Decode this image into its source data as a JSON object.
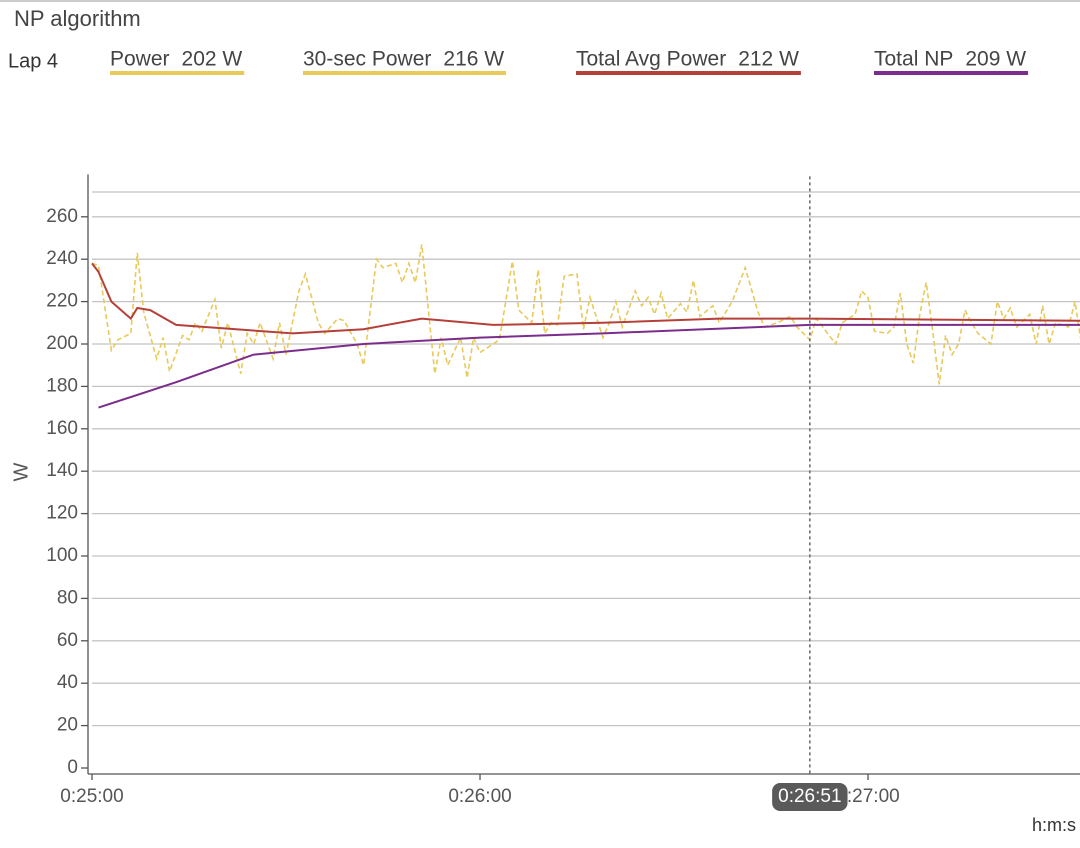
{
  "chart_data": {
    "type": "line",
    "title": "NP algorithm",
    "lap": "Lap 4",
    "ylabel": "W",
    "xlabel": "h:m:s",
    "xlim": [
      1500,
      1653
    ],
    "ylim": [
      0,
      280
    ],
    "xticks": [
      {
        "value": 1500,
        "label": "0:25:00"
      },
      {
        "value": 1560,
        "label": "0:26:00"
      },
      {
        "value": 1620,
        "label": "0:27:00"
      }
    ],
    "yticks": [
      0,
      20,
      40,
      60,
      80,
      100,
      120,
      140,
      160,
      180,
      200,
      220,
      240,
      260
    ],
    "grid": true,
    "cursor": {
      "value": 1611,
      "label": "0:26:51"
    },
    "series": [
      {
        "name": "Power",
        "legend_label": "202 W",
        "color": "#e8c95a",
        "dashed": true,
        "x": [
          1500,
          1501,
          1503,
          1504,
          1506,
          1507,
          1508,
          1510,
          1511,
          1512,
          1514,
          1515,
          1516,
          1517,
          1519,
          1520,
          1521,
          1523,
          1524,
          1525,
          1526,
          1528,
          1529,
          1530,
          1532,
          1533,
          1535,
          1536,
          1538,
          1539,
          1541,
          1542,
          1544,
          1545,
          1547,
          1548,
          1549,
          1550,
          1551,
          1553,
          1554,
          1555,
          1557,
          1558,
          1559,
          1560,
          1562,
          1563,
          1565,
          1566,
          1568,
          1569,
          1570,
          1571,
          1572,
          1573,
          1575,
          1576,
          1577,
          1579,
          1580,
          1581,
          1582,
          1584,
          1585,
          1586,
          1587,
          1588,
          1589,
          1591,
          1592,
          1593,
          1594,
          1596,
          1597,
          1599,
          1601,
          1603,
          1604,
          1606,
          1608,
          1609,
          1611,
          1612,
          1613,
          1615,
          1616,
          1618,
          1619,
          1620,
          1621,
          1623,
          1624,
          1625,
          1626,
          1627,
          1628,
          1629,
          1630,
          1631,
          1632,
          1633,
          1634,
          1635,
          1636,
          1637,
          1639,
          1640,
          1641,
          1642,
          1643,
          1645,
          1646,
          1647,
          1648,
          1649,
          1651,
          1652,
          1653
        ],
        "values": [
          238,
          237,
          197,
          202,
          205,
          243,
          215,
          193,
          203,
          187,
          204,
          202,
          210,
          206,
          221,
          198,
          210,
          186,
          205,
          200,
          210,
          193,
          210,
          195,
          225,
          233,
          210,
          205,
          212,
          211,
          200,
          190,
          240,
          236,
          238,
          229,
          238,
          229,
          247,
          186,
          203,
          190,
          203,
          184,
          203,
          196,
          200,
          202,
          239,
          216,
          210,
          235,
          205,
          210,
          209,
          232,
          233,
          207,
          222,
          203,
          210,
          220,
          208,
          225,
          218,
          222,
          214,
          224,
          212,
          219,
          215,
          230,
          213,
          218,
          210,
          220,
          236,
          215,
          208,
          210,
          213,
          208,
          202,
          212,
          208,
          200,
          210,
          214,
          225,
          222,
          206,
          205,
          208,
          224,
          200,
          191,
          214,
          229,
          206,
          181,
          204,
          195,
          200,
          216,
          210,
          205,
          200,
          220,
          212,
          217,
          208,
          214,
          200,
          218,
          200,
          210,
          208,
          220,
          200
        ]
      },
      {
        "name": "30-sec Power",
        "legend_label": "216 W",
        "color": "#e8c95a",
        "dashed": false,
        "x": [],
        "values": []
      },
      {
        "name": "Total Avg Power",
        "legend_label": "212 W",
        "color": "#b5403a",
        "dashed": false,
        "x": [
          1500,
          1501,
          1503,
          1506,
          1507,
          1509,
          1513,
          1531,
          1542,
          1551,
          1562,
          1579,
          1597,
          1611,
          1653
        ],
        "values": [
          238,
          234,
          220,
          212,
          217,
          216,
          209,
          205,
          207,
          212,
          209,
          210,
          212,
          212,
          211
        ]
      },
      {
        "name": "Total NP",
        "legend_label": "209 W",
        "color": "#7b2d8b",
        "dashed": false,
        "x": [
          1501,
          1513,
          1525,
          1542,
          1560,
          1579,
          1611,
          1653
        ],
        "values": [
          170,
          182,
          195,
          200,
          203,
          205,
          209,
          209
        ]
      }
    ]
  }
}
